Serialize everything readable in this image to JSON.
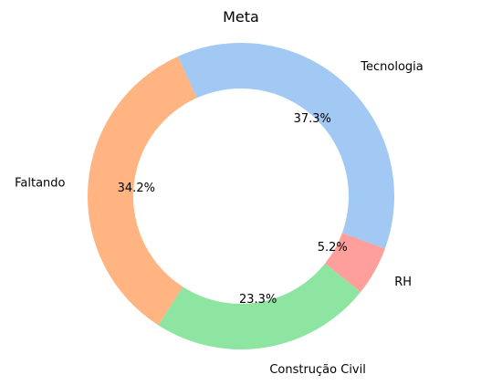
{
  "chart_data": {
    "type": "pie",
    "style": "donut",
    "title": "Meta",
    "slices": [
      {
        "label": "Tecnologia",
        "value": 37.3,
        "pct_label": "37.3%",
        "color": "#a1c9f4"
      },
      {
        "label": "Faltando",
        "value": 34.2,
        "pct_label": "34.2%",
        "color": "#ffb482"
      },
      {
        "label": "Construção Civil",
        "value": 23.3,
        "pct_label": "23.3%",
        "color": "#8de5a1"
      },
      {
        "label": "RH",
        "value": 5.2,
        "pct_label": "5.2%",
        "color": "#ff9f9b"
      }
    ]
  }
}
